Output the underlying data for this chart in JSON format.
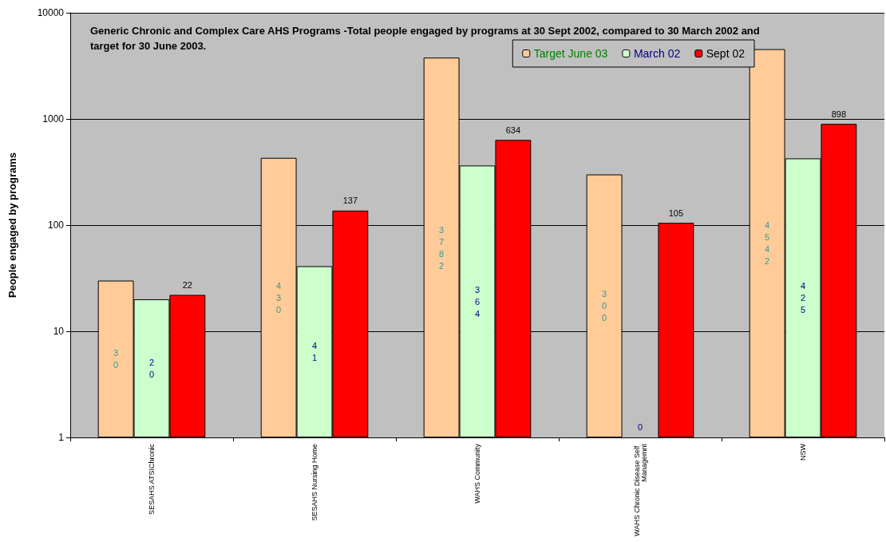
{
  "chart_data": {
    "type": "bar",
    "title": "Generic Chronic and Complex Care AHS Programs -Total people engaged by programs at 30 Sept 2002, compared to 30 March 2002 and target for 30 June 2003.",
    "ylabel": "People engaged by programs",
    "categories": [
      "SESAHS ATSIChronic",
      "SESAHS Nursing Home",
      "WAHS Community",
      "WAHS Chronic Disease Self Managemnt",
      "NSW"
    ],
    "series": [
      {
        "name": "Target June 03",
        "color": "#ffcc99",
        "values": [
          30,
          430,
          3782,
          300,
          4542
        ],
        "value_labels": [
          "30",
          "430",
          "3782",
          "300",
          "4542"
        ]
      },
      {
        "name": "March 02",
        "color": "#ccffcc",
        "values": [
          20,
          41,
          364,
          null,
          425
        ],
        "value_labels": [
          "20",
          "41",
          "364",
          "0",
          "425"
        ]
      },
      {
        "name": "Sept 02",
        "color": "#ff0000",
        "values": [
          22,
          137,
          634,
          105,
          898
        ],
        "value_labels": [
          "22",
          "137",
          "634",
          "105",
          "898"
        ]
      }
    ],
    "log": true,
    "ylim": [
      1,
      10000
    ],
    "yticks": [
      1,
      10,
      100,
      1000,
      10000
    ],
    "grid": "y",
    "legend": "top right"
  }
}
